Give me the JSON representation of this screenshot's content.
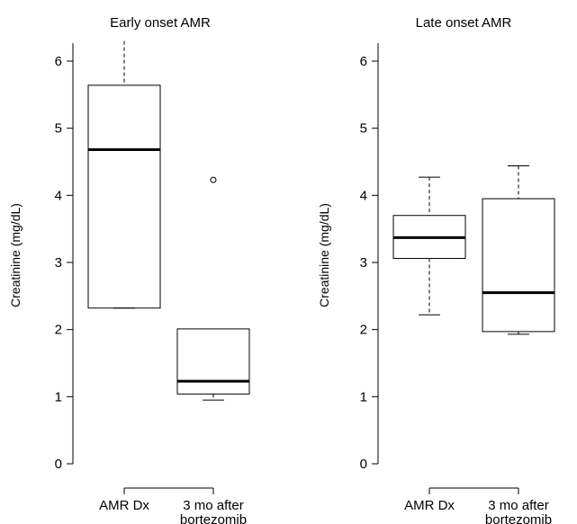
{
  "chart_data": [
    {
      "type": "box",
      "title": "Early onset AMR",
      "ylabel": "Creatinine (mg/dL)",
      "xlabel": "",
      "ylim": [
        0,
        6.3
      ],
      "yticks": [
        0,
        1,
        2,
        3,
        4,
        5,
        6
      ],
      "categories": [
        "AMR Dx",
        "3 mo after\nbortezomib"
      ],
      "boxes": [
        {
          "whisker_low": 2.32,
          "q1": 2.32,
          "median": 4.68,
          "q3": 5.64,
          "whisker_high": 6.3,
          "outliers": []
        },
        {
          "whisker_low": 0.95,
          "q1": 1.04,
          "median": 1.23,
          "q3": 2.01,
          "whisker_high": 2.01,
          "outliers": [
            4.23
          ]
        }
      ],
      "grid": false
    },
    {
      "type": "box",
      "title": "Late onset AMR",
      "ylabel": "Creatinine (mg/dL)",
      "xlabel": "",
      "ylim": [
        0,
        6.3
      ],
      "yticks": [
        0,
        1,
        2,
        3,
        4,
        5,
        6
      ],
      "categories": [
        "AMR Dx",
        "3 mo after\nbortezomib"
      ],
      "boxes": [
        {
          "whisker_low": 2.22,
          "q1": 3.06,
          "median": 3.37,
          "q3": 3.7,
          "whisker_high": 4.27,
          "outliers": []
        },
        {
          "whisker_low": 1.93,
          "q1": 1.97,
          "median": 2.55,
          "q3": 3.95,
          "whisker_high": 4.44,
          "outliers": []
        }
      ],
      "grid": false
    }
  ]
}
